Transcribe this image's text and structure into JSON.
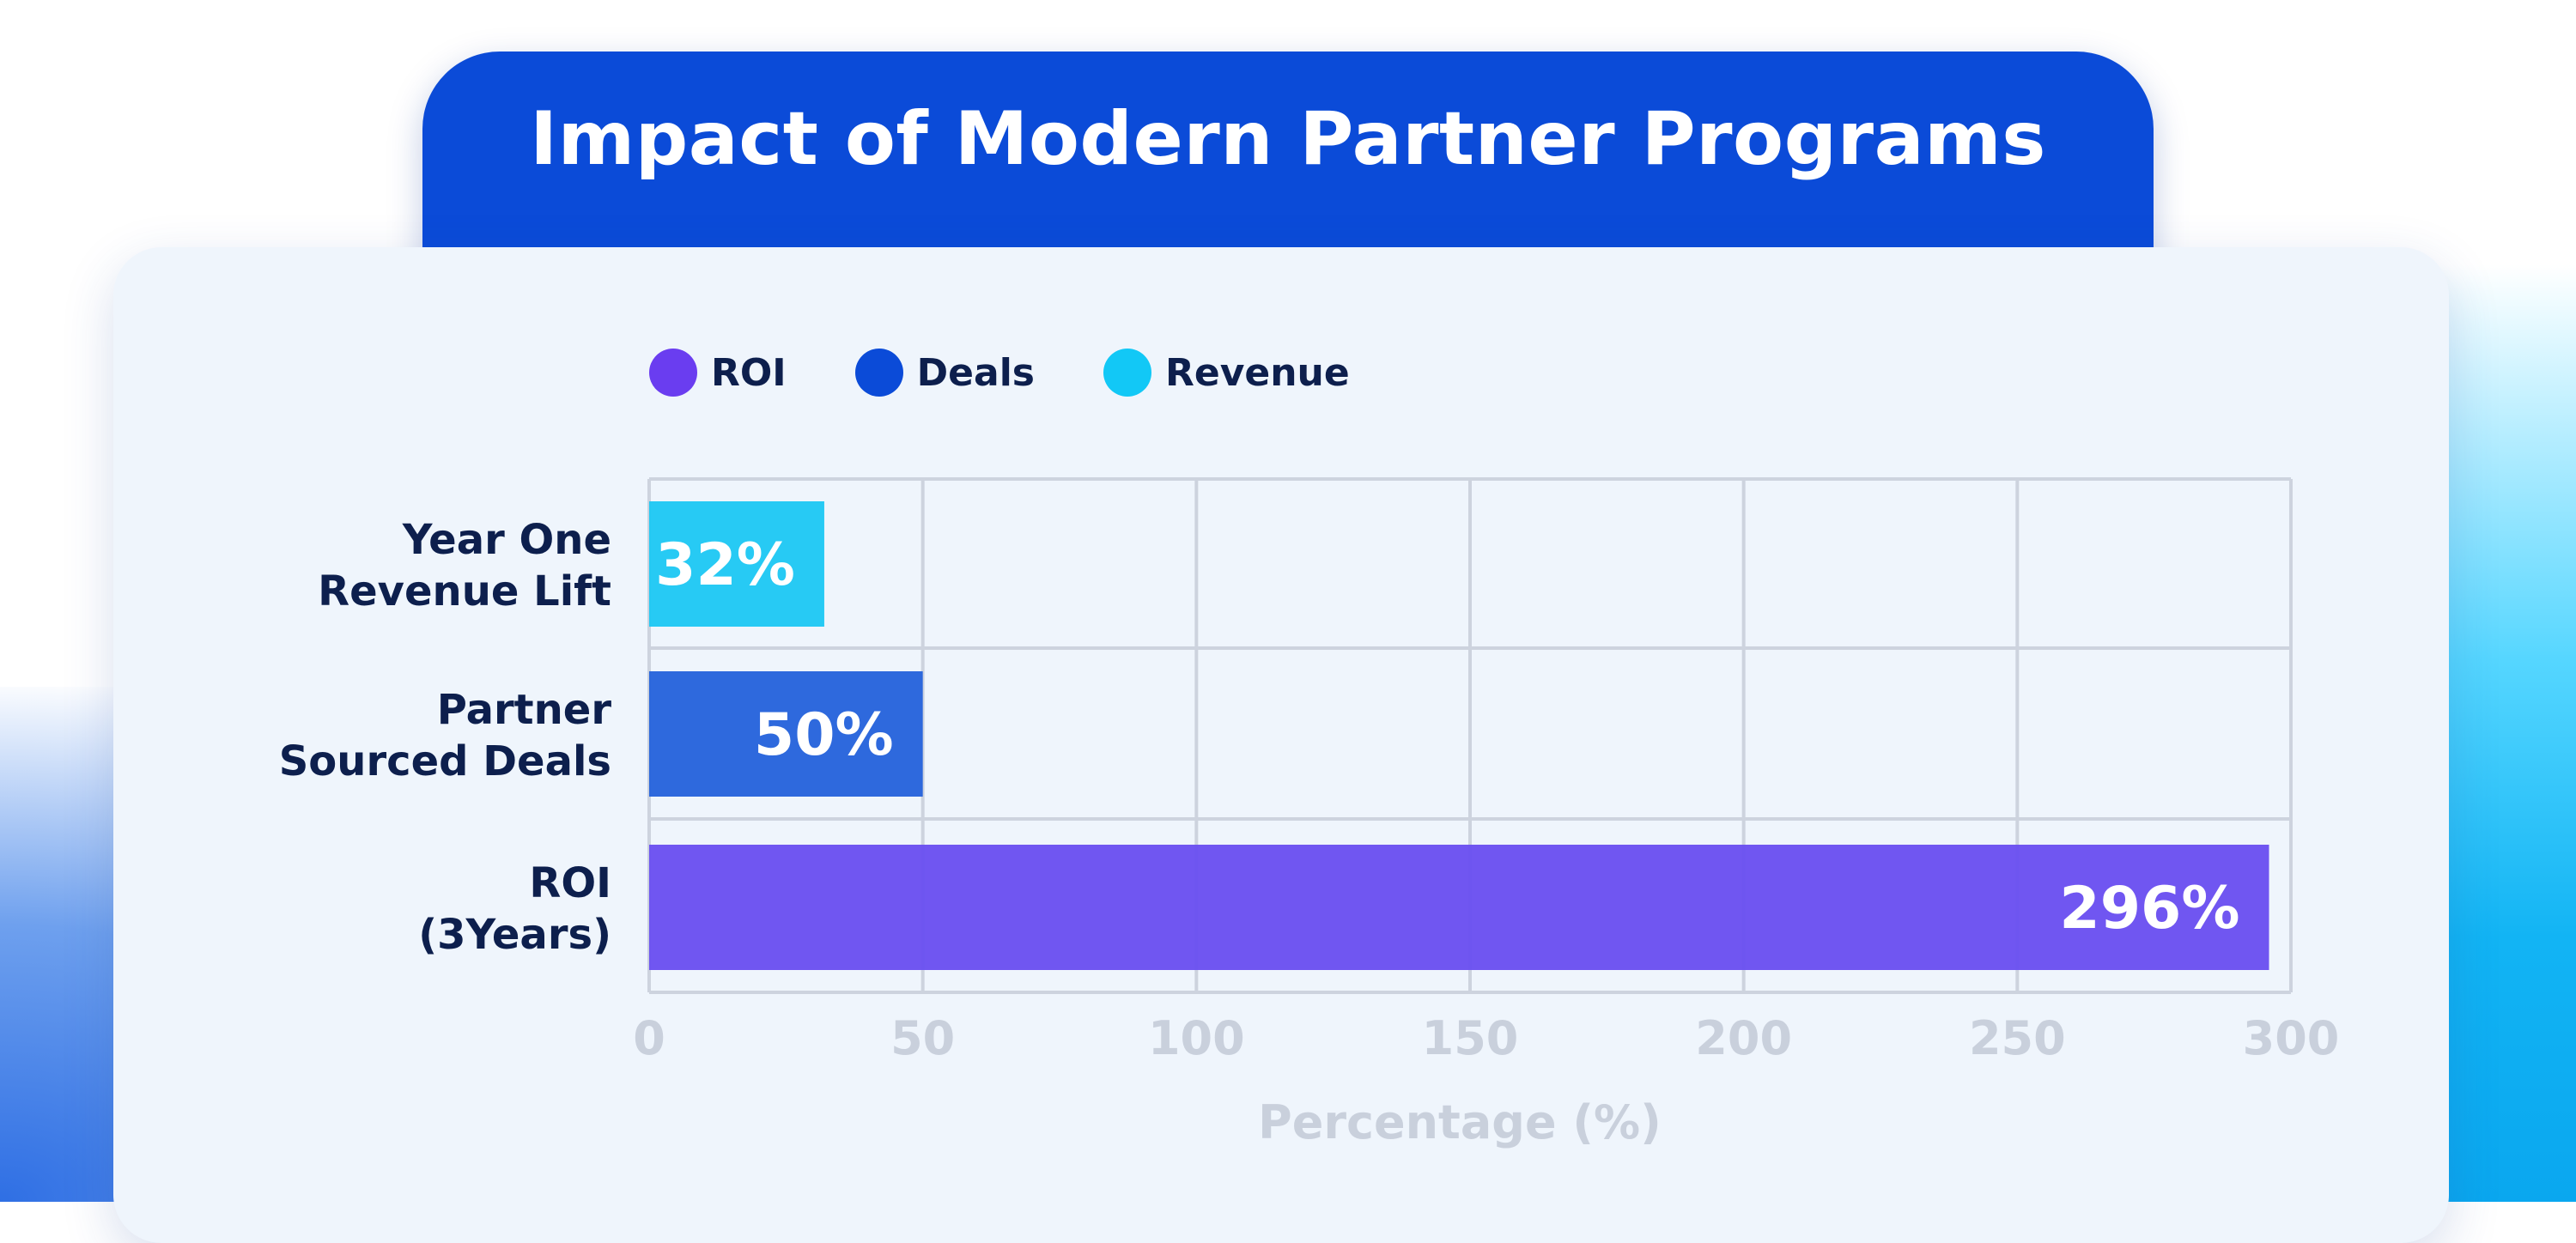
{
  "title": "Impact of Modern Partner Programs",
  "legend": [
    {
      "label": "ROI",
      "color": "#6a3df0"
    },
    {
      "label": "Deals",
      "color": "#0b4bd8"
    },
    {
      "label": "Revenue",
      "color": "#12c8f6"
    }
  ],
  "chart_data": {
    "type": "bar",
    "orientation": "horizontal",
    "title": "Impact of Modern Partner Programs",
    "xlabel": "Percentage (%)",
    "ylabel": "",
    "xlim": [
      0,
      300
    ],
    "xticks": [
      0,
      50,
      100,
      150,
      200,
      250,
      300
    ],
    "grid": true,
    "legend_position": "top-left",
    "categories": [
      [
        "Year One",
        "Revenue Lift"
      ],
      [
        "Partner",
        "Sourced Deals"
      ],
      [
        "ROI",
        "(3Years)"
      ]
    ],
    "series": [
      {
        "name": "Revenue",
        "category_index": 0,
        "value": 32,
        "label": "32%",
        "color": "#1ec8f4"
      },
      {
        "name": "Deals",
        "category_index": 1,
        "value": 50,
        "label": "50%",
        "color": "#2563dc"
      },
      {
        "name": "ROI",
        "category_index": 2,
        "value": 296,
        "label": "296%",
        "color": "#6a4ff0"
      }
    ]
  }
}
